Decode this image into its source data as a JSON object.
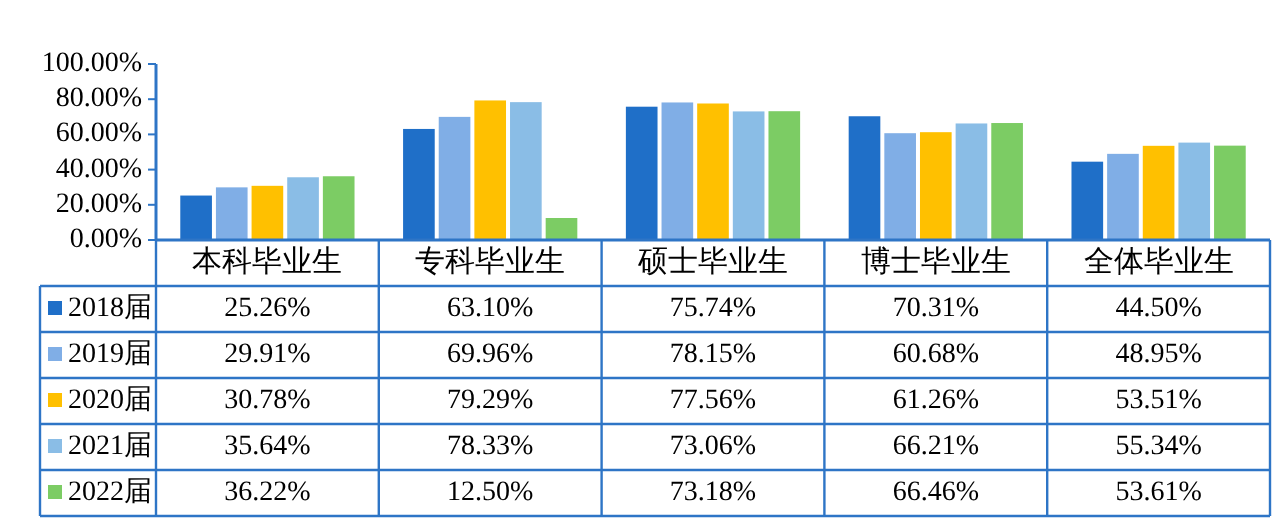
{
  "chart_data": {
    "type": "bar",
    "categories": [
      "本科毕业生",
      "专科毕业生",
      "硕士毕业生",
      "博士毕业生",
      "全体毕业生"
    ],
    "series": [
      {
        "name": "2018届",
        "color": "#1f6fc8",
        "values": [
          25.26,
          63.1,
          75.74,
          70.31,
          44.5
        ],
        "value_labels": [
          "25.26%",
          "63.10%",
          "75.74%",
          "70.31%",
          "44.50%"
        ]
      },
      {
        "name": "2019届",
        "color": "#80aee6",
        "values": [
          29.91,
          69.96,
          78.15,
          60.68,
          48.95
        ],
        "value_labels": [
          "29.91%",
          "69.96%",
          "78.15%",
          "60.68%",
          "48.95%"
        ]
      },
      {
        "name": "2020届",
        "color": "#ffc000",
        "values": [
          30.78,
          79.29,
          77.56,
          61.26,
          53.51
        ],
        "value_labels": [
          "30.78%",
          "79.29%",
          "77.56%",
          "61.26%",
          "53.51%"
        ]
      },
      {
        "name": "2021届",
        "color": "#8abde6",
        "values": [
          35.64,
          78.33,
          73.06,
          66.21,
          55.34
        ],
        "value_labels": [
          "35.64%",
          "78.33%",
          "73.06%",
          "66.21%",
          "55.34%"
        ]
      },
      {
        "name": "2022届",
        "color": "#7ccc64",
        "values": [
          36.22,
          12.5,
          73.18,
          66.46,
          53.61
        ],
        "value_labels": [
          "36.22%",
          "12.50%",
          "73.18%",
          "66.46%",
          "53.61%"
        ]
      }
    ],
    "ylim": [
      0,
      100
    ],
    "yticks": [
      {
        "value": 0,
        "label": "0.00%"
      },
      {
        "value": 20,
        "label": "20.00%"
      },
      {
        "value": 40,
        "label": "40.00%"
      },
      {
        "value": 60,
        "label": "60.00%"
      },
      {
        "value": 80,
        "label": "80.00%"
      },
      {
        "value": 100,
        "label": "100.00%"
      }
    ],
    "grid": false,
    "legend": "bottom"
  }
}
